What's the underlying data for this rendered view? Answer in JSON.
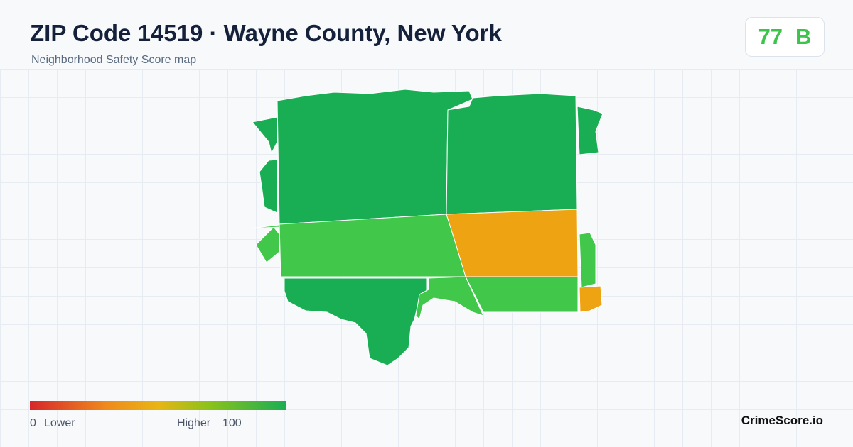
{
  "header": {
    "title": "ZIP Code 14519 · Wayne County, New York",
    "subtitle": "Neighborhood Safety Score map",
    "score": 77,
    "grade": "B"
  },
  "legend": {
    "min": 0,
    "low_label": "Lower",
    "high_label": "Higher",
    "max": 100
  },
  "footer": {
    "brand": "CrimeScore.io"
  }
}
